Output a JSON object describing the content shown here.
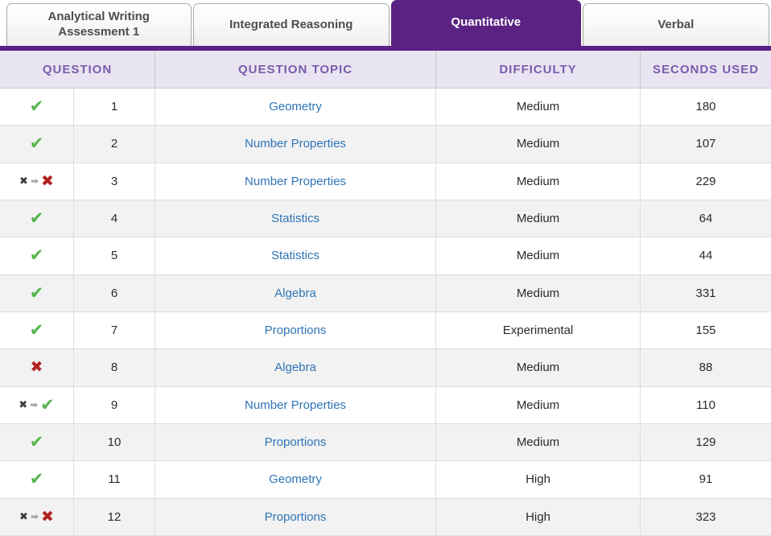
{
  "tabs": [
    {
      "label": "Analytical Writing Assessment 1",
      "active": false
    },
    {
      "label": "Integrated Reasoning",
      "active": false
    },
    {
      "label": "Quantitative",
      "active": true
    },
    {
      "label": "Verbal",
      "active": false
    }
  ],
  "table": {
    "headers": [
      "QUESTION",
      "QUESTION TOPIC",
      "DIFFICULTY",
      "SECONDS USED"
    ],
    "rows": [
      {
        "result": "correct",
        "number": "1",
        "topic": "Geometry",
        "difficulty": "Medium",
        "seconds": "180"
      },
      {
        "result": "correct",
        "number": "2",
        "topic": "Number Properties",
        "difficulty": "Medium",
        "seconds": "107"
      },
      {
        "result": "changed-incorrect",
        "number": "3",
        "topic": "Number Properties",
        "difficulty": "Medium",
        "seconds": "229"
      },
      {
        "result": "correct",
        "number": "4",
        "topic": "Statistics",
        "difficulty": "Medium",
        "seconds": "64"
      },
      {
        "result": "correct",
        "number": "5",
        "topic": "Statistics",
        "difficulty": "Medium",
        "seconds": "44"
      },
      {
        "result": "correct",
        "number": "6",
        "topic": "Algebra",
        "difficulty": "Medium",
        "seconds": "331"
      },
      {
        "result": "correct",
        "number": "7",
        "topic": "Proportions",
        "difficulty": "Experimental",
        "seconds": "155"
      },
      {
        "result": "incorrect",
        "number": "8",
        "topic": "Algebra",
        "difficulty": "Medium",
        "seconds": "88"
      },
      {
        "result": "changed-correct",
        "number": "9",
        "topic": "Number Properties",
        "difficulty": "Medium",
        "seconds": "110"
      },
      {
        "result": "correct",
        "number": "10",
        "topic": "Proportions",
        "difficulty": "Medium",
        "seconds": "129"
      },
      {
        "result": "correct",
        "number": "11",
        "topic": "Geometry",
        "difficulty": "High",
        "seconds": "91"
      },
      {
        "result": "changed-incorrect",
        "number": "12",
        "topic": "Proportions",
        "difficulty": "High",
        "seconds": "323"
      }
    ]
  },
  "icons": {
    "check": "✔",
    "cross": "✖",
    "arrow": "➡"
  },
  "colors": {
    "accent_purple": "#5A2383",
    "header_background": "#E8E4F1",
    "header_text": "#7B5BAD",
    "topic_link_blue": "#2E74B5",
    "correct_green": "#56B44C",
    "incorrect_red": "#B22222",
    "initial_answer_dark": "#3b3b3b",
    "arrow_gray": "#a6a6a6"
  }
}
